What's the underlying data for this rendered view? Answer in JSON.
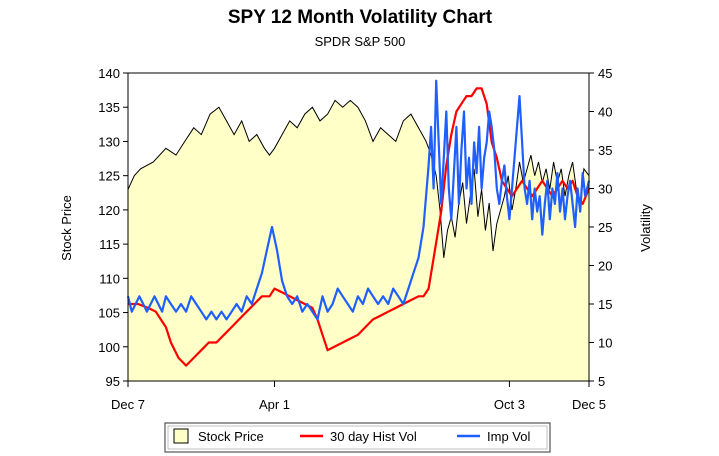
{
  "chart_data": {
    "type": "line",
    "title": "SPY 12 Month Volatility Chart",
    "subtitle": "SPDR S&P 500",
    "ylabel_left": "Stock Price",
    "ylabel_right": "Volatility",
    "ylim_left": [
      95,
      140
    ],
    "ylim_right": [
      5,
      45
    ],
    "yticks_left": [
      "95",
      "100",
      "105",
      "110",
      "115",
      "120",
      "125",
      "130",
      "135",
      "140"
    ],
    "yticks_right": [
      "5",
      "10",
      "15",
      "20",
      "25",
      "30",
      "35",
      "40",
      "45"
    ],
    "xticks": [
      {
        "label": "Dec 7",
        "t": 0
      },
      {
        "label": "Apr 1",
        "t": 116
      },
      {
        "label": "Oct 3",
        "t": 302
      },
      {
        "label": "Dec 5",
        "t": 365
      }
    ],
    "legend_position": "bottom",
    "legend": [
      "Stock Price",
      "30 day Hist Vol",
      "Imp Vol"
    ],
    "colors": {
      "price_fill": "#ffffc8",
      "price_line": "#000000",
      "hist_vol": "#ff0000",
      "imp_vol": "#1f5fff"
    },
    "series": [
      {
        "name": "Stock Price",
        "axis": "left",
        "x": [
          0,
          5,
          10,
          20,
          30,
          38,
          45,
          52,
          58,
          65,
          72,
          78,
          84,
          90,
          96,
          102,
          108,
          112,
          116,
          122,
          128,
          134,
          140,
          146,
          152,
          158,
          164,
          170,
          176,
          182,
          188,
          194,
          200,
          206,
          212,
          218,
          224,
          230,
          236,
          240,
          244,
          247,
          250,
          253,
          256,
          259,
          262,
          265,
          268,
          271,
          274,
          277,
          280,
          283,
          286,
          289,
          292,
          295,
          298,
          301,
          304,
          307,
          310,
          313,
          316,
          319,
          322,
          325,
          328,
          331,
          334,
          337,
          340,
          343,
          346,
          349,
          352,
          355,
          358,
          361,
          365
        ],
        "y": [
          123,
          125,
          126,
          127,
          129,
          128,
          130,
          132,
          131,
          134,
          135,
          133,
          131,
          133,
          130,
          131,
          129,
          128,
          129,
          131,
          133,
          132,
          134,
          135,
          133,
          134,
          136,
          135,
          136,
          135,
          133,
          130,
          132,
          131,
          130,
          133,
          134,
          132,
          130,
          128,
          125,
          120,
          113,
          117,
          119,
          116,
          121,
          124,
          118,
          122,
          126,
          119,
          123,
          117,
          121,
          114,
          118,
          120,
          122,
          125,
          120,
          123,
          127,
          124,
          126,
          128,
          125,
          127,
          124,
          126,
          123,
          127,
          124,
          126,
          122,
          125,
          127,
          123,
          120,
          126,
          125
        ]
      },
      {
        "name": "30 day Hist Vol",
        "axis": "right",
        "x": [
          0,
          8,
          16,
          22,
          26,
          30,
          34,
          40,
          46,
          52,
          58,
          64,
          70,
          76,
          82,
          88,
          94,
          100,
          106,
          112,
          116,
          122,
          128,
          134,
          140,
          146,
          150,
          154,
          158,
          164,
          170,
          176,
          182,
          188,
          194,
          200,
          206,
          212,
          218,
          224,
          230,
          234,
          238,
          241,
          244,
          248,
          252,
          256,
          260,
          264,
          268,
          272,
          276,
          280,
          284,
          288,
          292,
          296,
          300,
          304,
          308,
          312,
          316,
          320,
          324,
          328,
          332,
          336,
          340,
          344,
          348,
          352,
          356,
          360,
          365
        ],
        "y": [
          15,
          15,
          14.5,
          14,
          13,
          12,
          10,
          8,
          7,
          8,
          9,
          10,
          10,
          11,
          12,
          13,
          14,
          15,
          16,
          16,
          17,
          16.5,
          16,
          15.5,
          15,
          14.5,
          13,
          11,
          9,
          9.5,
          10,
          10.5,
          11,
          12,
          13,
          13.5,
          14,
          14.5,
          15,
          15.5,
          16,
          16,
          17,
          20,
          23,
          27,
          33,
          37,
          40,
          41,
          42,
          42,
          43,
          43,
          41,
          36,
          34,
          31,
          30,
          29,
          30,
          31,
          30,
          29,
          30,
          31,
          30,
          29,
          30,
          31,
          30,
          31,
          29,
          28,
          30
        ]
      },
      {
        "name": "Imp Vol",
        "axis": "right",
        "x": [
          0,
          3,
          6,
          9,
          12,
          15,
          18,
          21,
          24,
          27,
          30,
          34,
          38,
          42,
          46,
          50,
          54,
          58,
          62,
          66,
          70,
          74,
          78,
          82,
          86,
          90,
          94,
          98,
          102,
          106,
          110,
          114,
          118,
          122,
          126,
          130,
          134,
          138,
          142,
          146,
          150,
          154,
          158,
          162,
          166,
          170,
          174,
          178,
          182,
          186,
          190,
          194,
          198,
          202,
          206,
          210,
          214,
          218,
          222,
          226,
          230,
          234,
          238,
          240,
          242,
          244,
          246,
          248,
          250,
          252,
          254,
          256,
          258,
          260,
          262,
          264,
          266,
          268,
          270,
          272,
          274,
          276,
          278,
          280,
          282,
          284,
          286,
          288,
          290,
          292,
          294,
          296,
          298,
          300,
          302,
          304,
          306,
          308,
          310,
          312,
          314,
          316,
          318,
          320,
          322,
          324,
          326,
          328,
          330,
          332,
          334,
          336,
          338,
          340,
          342,
          344,
          346,
          348,
          350,
          352,
          354,
          356,
          358,
          360,
          362,
          365
        ],
        "y": [
          16,
          14,
          15,
          16,
          15,
          14,
          15,
          16,
          15,
          14,
          16,
          15,
          14,
          15,
          14,
          16,
          15,
          14,
          13,
          14,
          13,
          14,
          13,
          14,
          15,
          14,
          16,
          15,
          17,
          19,
          22,
          25,
          22,
          18,
          16,
          15,
          16,
          14,
          15,
          14,
          13,
          16,
          14,
          15,
          17,
          16,
          15,
          14,
          16,
          15,
          17,
          16,
          15,
          16,
          15,
          17,
          16,
          15,
          17,
          19,
          21,
          25,
          33,
          38,
          30,
          44,
          36,
          28,
          34,
          40,
          30,
          26,
          32,
          38,
          28,
          35,
          40,
          30,
          34,
          28,
          36,
          32,
          38,
          30,
          34,
          36,
          40,
          38,
          35,
          30,
          28,
          31,
          33,
          29,
          26,
          30,
          34,
          38,
          42,
          36,
          30,
          28,
          31,
          26,
          30,
          27,
          29,
          24,
          28,
          31,
          26,
          30,
          28,
          32,
          27,
          30,
          26,
          29,
          31,
          28,
          25,
          30,
          27,
          32,
          29,
          31
        ]
      }
    ]
  }
}
